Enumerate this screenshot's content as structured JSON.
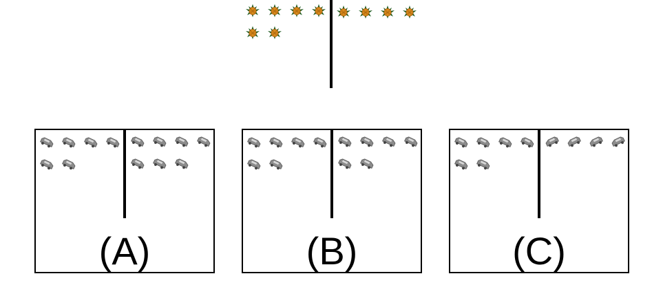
{
  "top_panel": {
    "left_group": {
      "icon": "pineapple-icon",
      "count": 6
    },
    "right_group": {
      "icon": "pineapple-icon",
      "count": 4
    }
  },
  "options": [
    {
      "label": "(A)",
      "left_group": {
        "icon": "car-icon",
        "count": 6
      },
      "right_group": {
        "icon": "car-icon",
        "count": 7
      }
    },
    {
      "label": "(B)",
      "left_group": {
        "icon": "car-icon",
        "count": 6
      },
      "right_group": {
        "icon": "car-icon",
        "count": 6
      }
    },
    {
      "label": "(C)",
      "left_group": {
        "icon": "car-icon",
        "count": 6
      },
      "right_group": {
        "icon": "car-icon",
        "count": 4
      }
    }
  ],
  "colors": {
    "pineapple_body": "#d98a1c",
    "pineapple_leaf": "#1f5a1f",
    "car_body": "#8c8c8c",
    "line": "#000000"
  }
}
